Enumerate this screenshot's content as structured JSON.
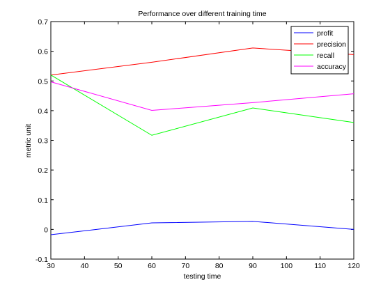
{
  "chart_data": {
    "type": "line",
    "title": "Performance over different training time",
    "xlabel": "testing time",
    "ylabel": "metric unit",
    "xlim": [
      30,
      120
    ],
    "ylim": [
      -0.1,
      0.7
    ],
    "xticks": [
      30,
      40,
      50,
      60,
      70,
      80,
      90,
      100,
      110,
      120
    ],
    "yticks": [
      -0.1,
      0,
      0.1,
      0.2,
      0.3,
      0.4,
      0.5,
      0.6,
      0.7
    ],
    "ytick_labels": [
      "-0.1",
      "0",
      "0.1",
      "0.2",
      "0.3",
      "0.4",
      "0.5",
      "0.6",
      "0.7"
    ],
    "x": [
      30,
      60,
      90,
      120
    ],
    "grid": false,
    "legend": "top-right",
    "series": [
      {
        "name": "profit",
        "color": "#0000ff",
        "values": [
          -0.018,
          0.022,
          0.027,
          0.0
        ]
      },
      {
        "name": "precision",
        "color": "#ff0000",
        "values": [
          0.52,
          0.563,
          0.611,
          0.589
        ]
      },
      {
        "name": "recall",
        "color": "#00ff00",
        "values": [
          0.52,
          0.317,
          0.409,
          0.36
        ]
      },
      {
        "name": "accuracy",
        "color": "#ff00ff",
        "values": [
          0.497,
          0.401,
          0.427,
          0.457
        ]
      }
    ]
  }
}
